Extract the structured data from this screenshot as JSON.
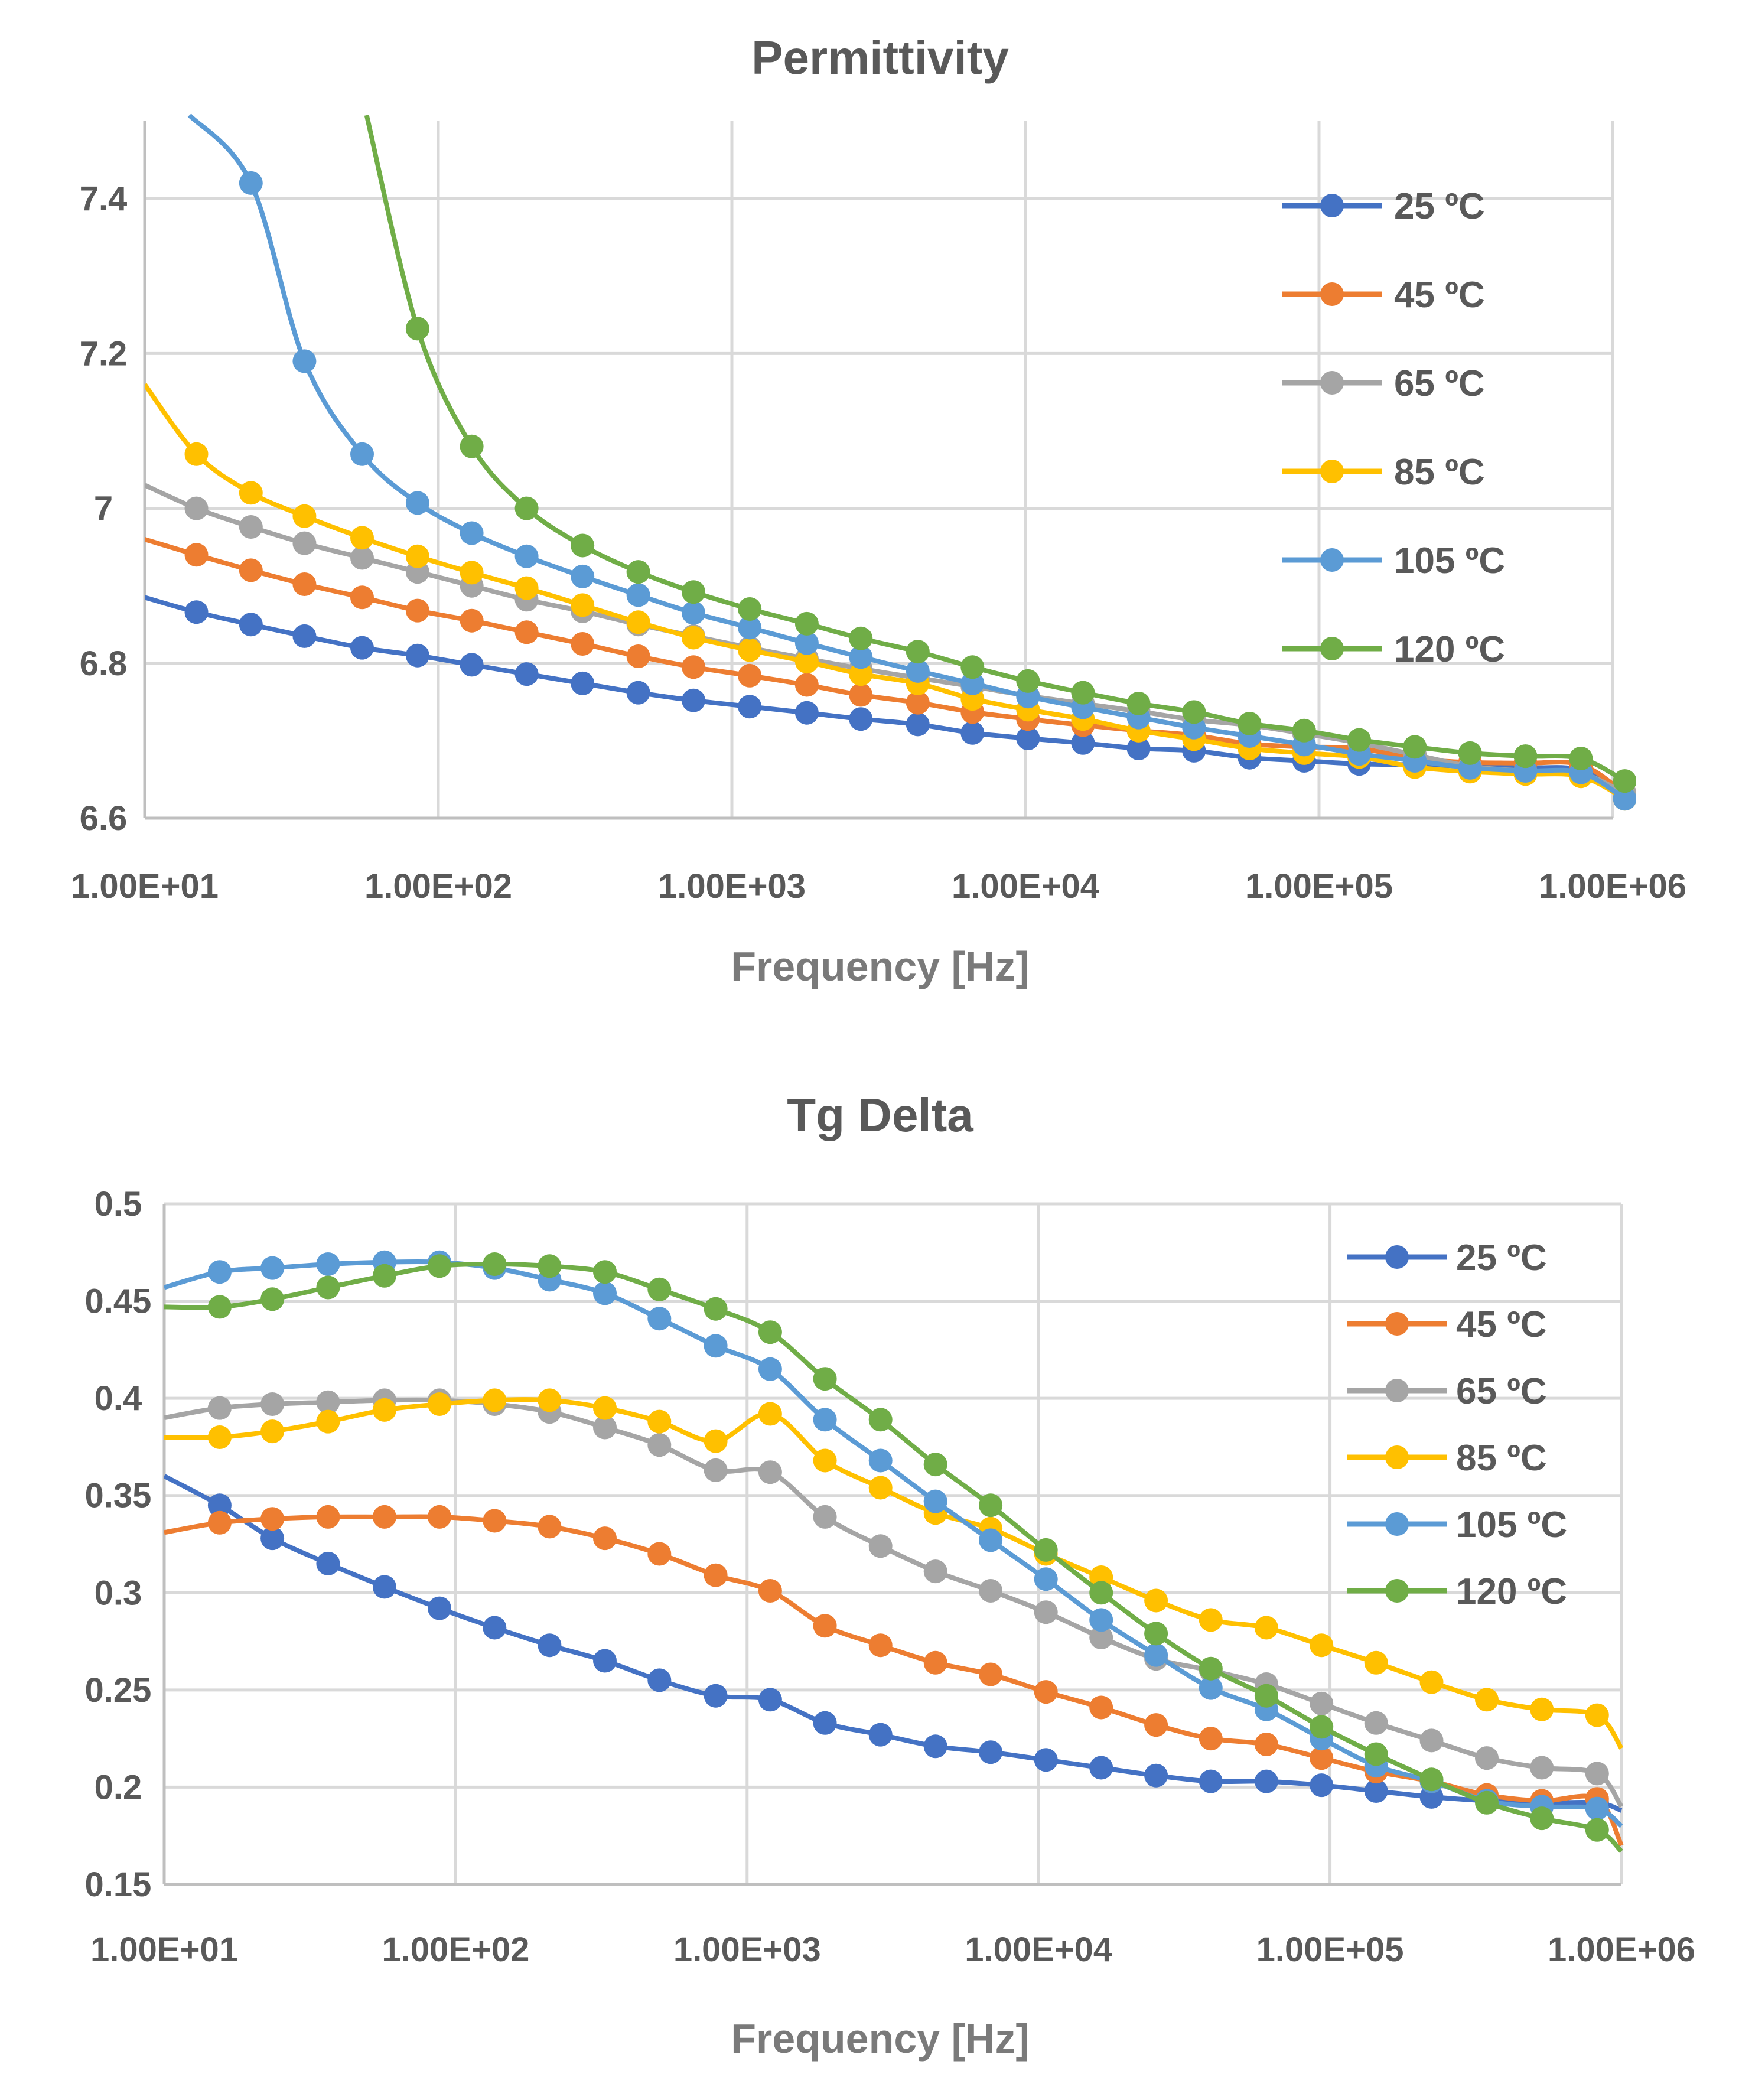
{
  "chart_data": [
    {
      "type": "line",
      "title": "Permittivity",
      "xlabel": "Frequency [Hz]",
      "ylabel": "",
      "xscale": "log",
      "xlim": [
        10,
        1000000
      ],
      "ylim": [
        6.6,
        7.5
      ],
      "x_tick_labels": [
        "1.00E+01",
        "1.00E+02",
        "1.00E+03",
        "1.00E+04",
        "1.00E+05",
        "1.00E+06"
      ],
      "y_ticks": [
        6.6,
        6.8,
        7,
        7.2,
        7.4
      ],
      "y_tick_labels": [
        "6.6",
        "6.8",
        "7",
        "7.2",
        "7.4"
      ],
      "legend_position": "right",
      "x": [
        15,
        23,
        35,
        55,
        85,
        130,
        200,
        310,
        480,
        740,
        1150,
        1800,
        2750,
        4300,
        6600,
        10200,
        15700,
        24300,
        37500,
        58000,
        89000,
        137000,
        212000,
        327000,
        505000,
        780000,
        1100000
      ],
      "series": [
        {
          "name": "25 ºC",
          "color": "#4472C4",
          "start_y": 6.885,
          "values": [
            6.866,
            6.85,
            6.835,
            6.82,
            6.81,
            6.798,
            6.786,
            6.774,
            6.762,
            6.752,
            6.744,
            6.736,
            6.728,
            6.721,
            6.71,
            6.703,
            6.697,
            6.69,
            6.687,
            6.678,
            6.674,
            6.67,
            6.669,
            6.667,
            6.665,
            6.662,
            6.628
          ]
        },
        {
          "name": "45 ºC",
          "color": "#ED7D31",
          "start_y": 6.96,
          "values": [
            6.94,
            6.92,
            6.902,
            6.885,
            6.868,
            6.855,
            6.84,
            6.825,
            6.809,
            6.795,
            6.784,
            6.772,
            6.759,
            6.749,
            6.737,
            6.728,
            6.72,
            6.713,
            6.707,
            6.696,
            6.692,
            6.69,
            6.677,
            6.672,
            6.671,
            6.669,
            6.632
          ]
        },
        {
          "name": "65 ºC",
          "color": "#A5A5A5",
          "start_y": 7.03,
          "values": [
            7.0,
            6.976,
            6.955,
            6.936,
            6.918,
            6.9,
            6.882,
            6.867,
            6.85,
            6.835,
            6.82,
            6.806,
            6.793,
            6.781,
            6.77,
            6.758,
            6.748,
            6.738,
            6.727,
            6.72,
            6.709,
            6.697,
            6.682,
            6.667,
            6.661,
            6.658,
            6.632
          ]
        },
        {
          "name": "85 ºC",
          "color": "#FFC000",
          "start_y": 7.16,
          "values": [
            7.07,
            7.02,
            6.99,
            6.962,
            6.938,
            6.917,
            6.897,
            6.875,
            6.853,
            6.833,
            6.817,
            6.802,
            6.786,
            6.774,
            6.754,
            6.74,
            6.728,
            6.713,
            6.702,
            6.69,
            6.684,
            6.679,
            6.666,
            6.66,
            6.657,
            6.654,
            6.625
          ]
        },
        {
          "name": "105 ºC",
          "color": "#5B9BD5",
          "values": [
            null,
            7.42,
            7.19,
            7.07,
            7.007,
            6.968,
            6.938,
            6.912,
            6.888,
            6.865,
            6.846,
            6.826,
            6.808,
            6.79,
            6.774,
            6.757,
            6.743,
            6.73,
            6.717,
            6.706,
            6.695,
            6.683,
            6.674,
            6.665,
            6.661,
            6.659,
            6.625
          ]
        },
        {
          "name": "120 ºC",
          "color": "#70AD47",
          "values": [
            null,
            null,
            null,
            null,
            7.232,
            7.08,
            7.0,
            6.952,
            6.918,
            6.892,
            6.87,
            6.851,
            6.832,
            6.815,
            6.795,
            6.777,
            6.762,
            6.748,
            6.737,
            6.722,
            6.713,
            6.701,
            6.692,
            6.684,
            6.68,
            6.677,
            6.648
          ]
        }
      ]
    },
    {
      "type": "line",
      "title": "Tg Delta",
      "xlabel": "Frequency [Hz]",
      "ylabel": "",
      "xscale": "log",
      "xlim": [
        10,
        1000000
      ],
      "ylim": [
        0.15,
        0.5
      ],
      "x_tick_labels": [
        "1.00E+01",
        "1.00E+02",
        "1.00E+03",
        "1.00E+04",
        "1.00E+05",
        "1.00E+06"
      ],
      "y_ticks": [
        0.15,
        0.2,
        0.25,
        0.3,
        0.35,
        0.4,
        0.45,
        0.5
      ],
      "y_tick_labels": [
        "0.15",
        "0.2",
        "0.25",
        "0.3",
        "0.35",
        "0.4",
        "0.45",
        "0.5"
      ],
      "legend_position": "right",
      "x": [
        15.5,
        23.5,
        36.5,
        57,
        88,
        136,
        210,
        325,
        500,
        780,
        1200,
        1850,
        2870,
        4430,
        6850,
        10600,
        16400,
        25300,
        39000,
        60500,
        93500,
        144000,
        223000,
        345000,
        533000,
        825000
      ],
      "series": [
        {
          "name": "25 ºC",
          "color": "#4472C4",
          "start_y": 0.36,
          "end_y": 0.188,
          "values": [
            0.345,
            0.328,
            0.315,
            0.303,
            0.292,
            0.282,
            0.273,
            0.265,
            0.255,
            0.247,
            0.245,
            0.233,
            0.227,
            0.221,
            0.218,
            0.214,
            0.21,
            0.206,
            0.203,
            0.203,
            0.201,
            0.198,
            0.195,
            0.193,
            0.192,
            0.192
          ]
        },
        {
          "name": "45 ºC",
          "color": "#ED7D31",
          "start_y": 0.331,
          "end_y": 0.17,
          "values": [
            0.336,
            0.338,
            0.339,
            0.339,
            0.339,
            0.337,
            0.334,
            0.328,
            0.32,
            0.309,
            0.301,
            0.283,
            0.273,
            0.264,
            0.258,
            0.249,
            0.241,
            0.232,
            0.225,
            0.222,
            0.215,
            0.208,
            0.203,
            0.196,
            0.193,
            0.194
          ]
        },
        {
          "name": "65 ºC",
          "color": "#A5A5A5",
          "start_y": 0.39,
          "end_y": 0.19,
          "values": [
            0.395,
            0.397,
            0.398,
            0.399,
            0.399,
            0.397,
            0.393,
            0.385,
            0.376,
            0.363,
            0.362,
            0.339,
            0.324,
            0.311,
            0.301,
            0.29,
            0.277,
            0.266,
            0.26,
            0.253,
            0.243,
            0.233,
            0.224,
            0.215,
            0.21,
            0.207
          ]
        },
        {
          "name": "85 ºC",
          "color": "#FFC000",
          "start_y": 0.38,
          "end_y": 0.22,
          "values": [
            0.38,
            0.383,
            0.388,
            0.394,
            0.397,
            0.399,
            0.399,
            0.395,
            0.388,
            0.378,
            0.392,
            0.368,
            0.354,
            0.341,
            0.333,
            0.32,
            0.308,
            0.296,
            0.286,
            0.282,
            0.273,
            0.264,
            0.254,
            0.245,
            0.24,
            0.237
          ]
        },
        {
          "name": "105 ºC",
          "color": "#5B9BD5",
          "start_y": 0.457,
          "end_y": 0.18,
          "values": [
            0.465,
            0.467,
            0.469,
            0.47,
            0.47,
            0.467,
            0.461,
            0.454,
            0.441,
            0.427,
            0.415,
            0.389,
            0.368,
            0.347,
            0.327,
            0.307,
            0.286,
            0.268,
            0.251,
            0.24,
            0.225,
            0.211,
            0.203,
            0.193,
            0.19,
            0.189
          ]
        },
        {
          "name": "120 ºC",
          "color": "#70AD47",
          "start_y": 0.447,
          "end_y": 0.167,
          "values": [
            0.447,
            0.451,
            0.457,
            0.463,
            0.468,
            0.469,
            0.468,
            0.465,
            0.456,
            0.446,
            0.434,
            0.41,
            0.389,
            0.366,
            0.345,
            0.322,
            0.3,
            0.279,
            0.261,
            0.247,
            0.231,
            0.217,
            0.204,
            0.192,
            0.184,
            0.178
          ]
        }
      ]
    }
  ]
}
